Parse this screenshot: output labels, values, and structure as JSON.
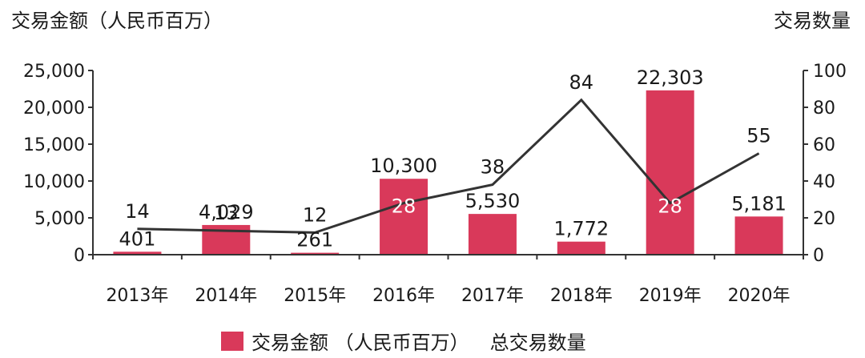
{
  "chart_data": {
    "type": "bar",
    "title": "",
    "ylabel_left": "交易金额（人民币百万）",
    "ylabel_right": "交易数量",
    "categories": [
      "2013年",
      "2014年",
      "2015年",
      "2016年",
      "2017年",
      "2018年",
      "2019年",
      "2020年"
    ],
    "ylim_left": [
      0,
      25000
    ],
    "ylim_right": [
      0,
      100
    ],
    "yticks_left": [
      "0",
      "5,000",
      "10,000",
      "15,000",
      "20,000",
      "25,000"
    ],
    "yticks_right": [
      "0",
      "20",
      "40",
      "60",
      "80",
      "100"
    ],
    "grid": false,
    "legend_position": "bottom",
    "series": [
      {
        "name": "交易金额 （人民币百万）",
        "type": "bar",
        "axis": "left",
        "color": "#d9395a",
        "values": [
          401,
          4029,
          261,
          10300,
          5530,
          1772,
          22303,
          5181
        ],
        "labels": [
          "401",
          "4,029",
          "261",
          "10,300",
          "5,530",
          "1,772",
          "22,303",
          "5,181"
        ]
      },
      {
        "name": "总交易数量",
        "type": "line",
        "axis": "right",
        "color": "#333333",
        "values": [
          14,
          13,
          12,
          28,
          38,
          84,
          28,
          55
        ],
        "labels": [
          "14",
          "13",
          "12",
          "28",
          "38",
          "84",
          "28",
          "55"
        ]
      }
    ]
  }
}
